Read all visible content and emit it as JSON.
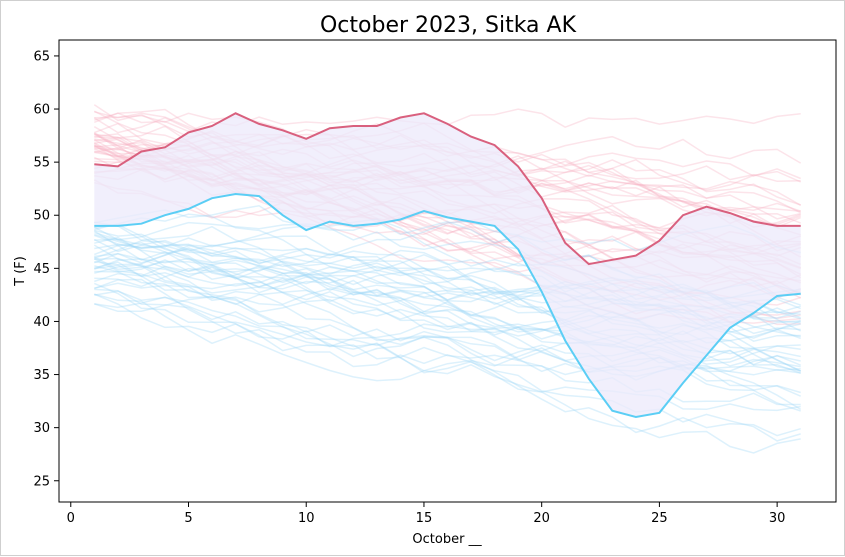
{
  "chart_data": {
    "type": "line",
    "title": "October 2023, Sitka AK",
    "xlabel": "October __",
    "ylabel": "T (F)",
    "xlim": [
      -0.5,
      32.5
    ],
    "ylim": [
      23,
      66.5
    ],
    "xticks": [
      0,
      5,
      10,
      15,
      20,
      25,
      30
    ],
    "yticks": [
      25,
      30,
      35,
      40,
      45,
      50,
      55,
      60,
      65
    ],
    "grid": false,
    "x": [
      1,
      2,
      3,
      4,
      5,
      6,
      7,
      8,
      9,
      10,
      11,
      12,
      13,
      14,
      15,
      16,
      17,
      18,
      19,
      20,
      21,
      22,
      23,
      24,
      25,
      26,
      27,
      28,
      29,
      30,
      31
    ],
    "series": [
      {
        "values": [
          54.8,
          54.6,
          56.0,
          56.4,
          57.8,
          58.4,
          59.6,
          58.6,
          58.0,
          57.2,
          58.2,
          58.4,
          58.4,
          59.2,
          59.6,
          58.6,
          57.4,
          56.6,
          54.6,
          51.6,
          47.4,
          45.4,
          45.8,
          46.2,
          47.6,
          50.0,
          50.8,
          50.2,
          49.4,
          49.0,
          49.0
        ],
        "color": "#d9607e"
      },
      {
        "values": [
          49.0,
          49.0,
          49.2,
          50.0,
          50.6,
          51.6,
          52.0,
          51.8,
          50.0,
          48.6,
          49.4,
          49.0,
          49.2,
          49.6,
          50.4,
          49.8,
          49.4,
          49.0,
          46.8,
          42.8,
          38.2,
          34.6,
          31.6,
          31.0,
          31.4,
          34.2,
          36.8,
          39.4,
          40.8,
          42.4,
          42.6
        ],
        "color": "#5bcef5"
      }
    ],
    "band_color": "#ece9fb",
    "historical_high_color": "#f6b2c2",
    "historical_low_color": "#9dd8f7"
  }
}
